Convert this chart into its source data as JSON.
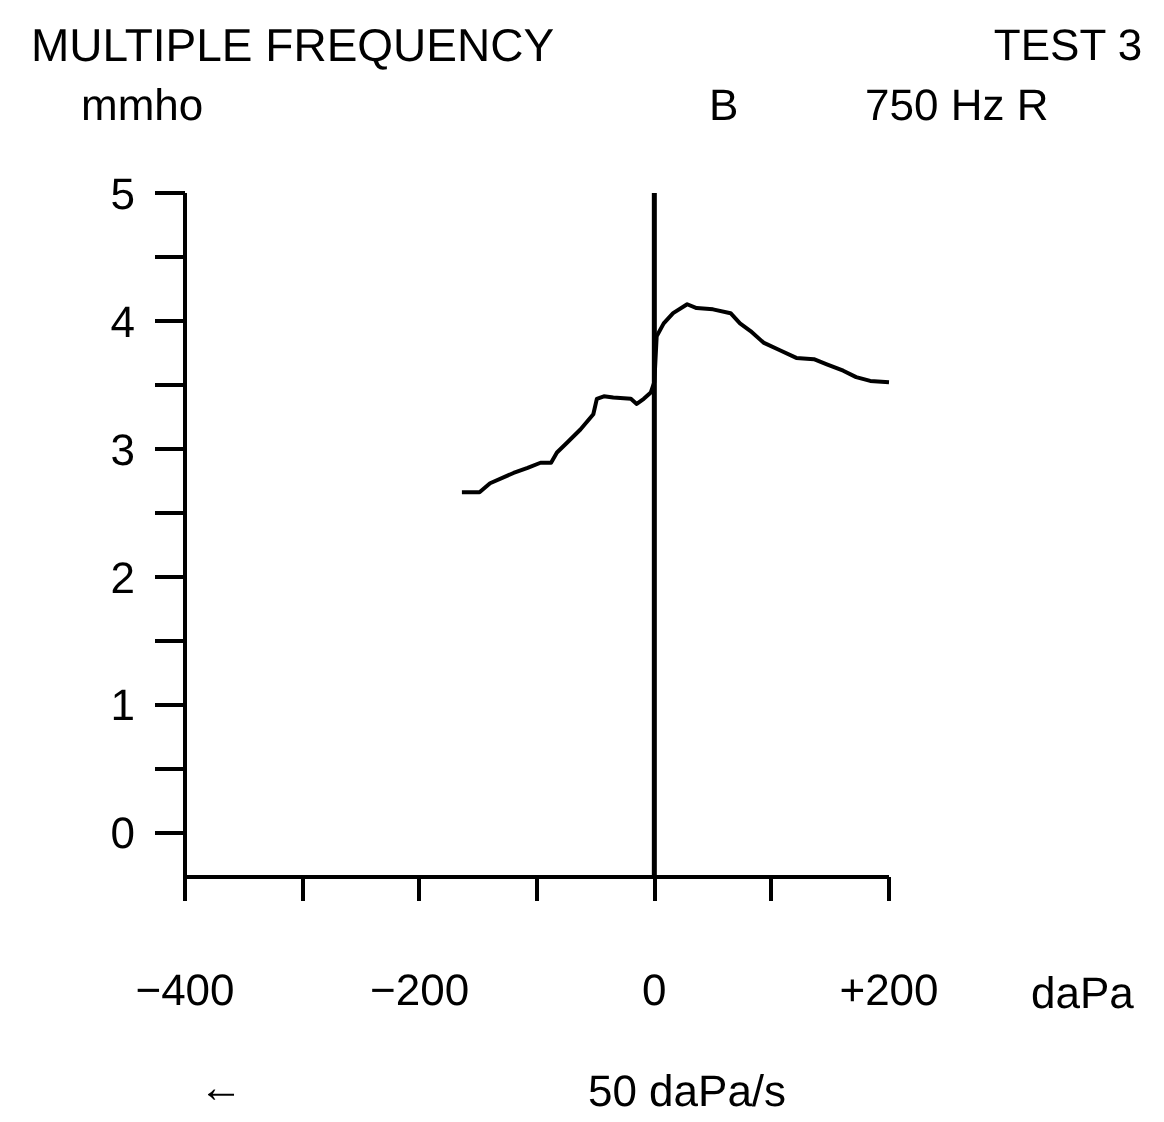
{
  "chart_data": {
    "type": "line",
    "title": "MULTIPLE FREQUENCY",
    "xlabel": "daPa",
    "ylabel": "mmho",
    "annotations": [
      "TEST 3",
      "B",
      "750 Hz R",
      "←",
      "50 daPa/s"
    ],
    "x": [
      -164,
      -149,
      -140,
      -120,
      -108,
      -97,
      -88,
      -83,
      -74,
      -63,
      -52,
      -49,
      -43,
      -35,
      -20,
      -15,
      -9,
      -3,
      0,
      2,
      8,
      16,
      28,
      36,
      50,
      65,
      73,
      82,
      93,
      107,
      121,
      136,
      147,
      161,
      172,
      184,
      200
    ],
    "series": [
      {
        "color": "#000000",
        "values": [
          2.66,
          2.66,
          2.73,
          2.81,
          2.85,
          2.89,
          2.89,
          2.97,
          3.05,
          3.15,
          3.27,
          3.39,
          3.41,
          3.4,
          3.39,
          3.35,
          3.39,
          3.44,
          3.52,
          3.88,
          3.98,
          4.06,
          4.13,
          4.1,
          4.09,
          4.06,
          3.98,
          3.92,
          3.83,
          3.77,
          3.71,
          3.7,
          3.66,
          3.61,
          3.56,
          3.53,
          3.52
        ]
      }
    ],
    "xlim": [
      -400,
      200
    ],
    "ylim": [
      -0.35,
      5
    ],
    "xticks": [
      {
        "value": -400,
        "label": "−400"
      },
      {
        "value": -300,
        "label": null
      },
      {
        "value": -200,
        "label": "−200"
      },
      {
        "value": -100,
        "label": null
      },
      0,
      {
        "value": 100,
        "label": null
      },
      {
        "value": 200,
        "label": "+200"
      }
    ],
    "yticks": [
      0,
      {
        "value": 0.5,
        "label": null
      },
      1,
      {
        "value": 1.5,
        "label": null
      },
      2,
      {
        "value": 2.5,
        "label": null
      },
      3,
      {
        "value": 3.5,
        "label": null
      },
      4,
      {
        "value": 4.5,
        "label": null
      },
      5
    ],
    "ref_lines": [
      {
        "axis": "x",
        "value": 0
      }
    ],
    "grid": false
  }
}
